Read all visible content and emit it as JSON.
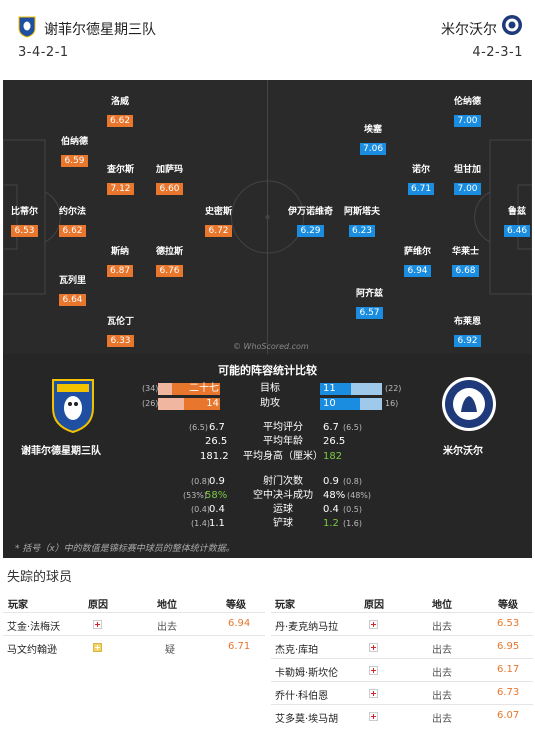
{
  "home": {
    "name": "谢菲尔德星期三队",
    "formation": "3-4-2-1"
  },
  "away": {
    "name": "米尔沃尔",
    "formation": "4-2-3-1"
  },
  "home_players": [
    {
      "name": "洛威",
      "rating": "6.62"
    },
    {
      "name": "伯纳德",
      "rating": "6.59"
    },
    {
      "name": "查尔斯",
      "rating": "7.12"
    },
    {
      "name": "加萨玛",
      "rating": "6.60"
    },
    {
      "name": "比蒂尔",
      "rating": "6.53"
    },
    {
      "name": "约尔法",
      "rating": "6.62"
    },
    {
      "name": "史密斯",
      "rating": "6.72"
    },
    {
      "name": "斯纳",
      "rating": "6.87"
    },
    {
      "name": "德拉斯",
      "rating": "6.76"
    },
    {
      "name": "瓦列里",
      "rating": "6.64"
    },
    {
      "name": "瓦伦丁",
      "rating": "6.33"
    }
  ],
  "away_players": [
    {
      "name": "伦纳德",
      "rating": "7.00"
    },
    {
      "name": "埃塞",
      "rating": "7.06"
    },
    {
      "name": "诺尔",
      "rating": "6.71"
    },
    {
      "name": "坦甘加",
      "rating": "7.00"
    },
    {
      "name": "伊万诺维奇",
      "rating": "6.29"
    },
    {
      "name": "阿斯塔夫",
      "rating": "6.23"
    },
    {
      "name": "鲁兹",
      "rating": "6.46"
    },
    {
      "name": "萨维尔",
      "rating": "6.94"
    },
    {
      "name": "华莱士",
      "rating": "6.68"
    },
    {
      "name": "阿齐兹",
      "rating": "6.57"
    },
    {
      "name": "布莱恩",
      "rating": "6.92"
    }
  ],
  "watermark": "© WhoScored.com",
  "stats": {
    "title": "可能的阵容统计比较",
    "home_label": "谢菲尔德星期三队",
    "away_label": "米尔沃尔",
    "goals": {
      "label": "目标",
      "home_total": "(34)",
      "home": "二十七",
      "away": "11",
      "away_total": "(22)"
    },
    "assists": {
      "label": "助攻",
      "home_total": "(26)",
      "home": "14",
      "away": "10",
      "away_total": "16)"
    },
    "rows1": [
      {
        "label": "平均评分",
        "home_total": "(6.5)",
        "home": "6.7",
        "away": "6.7",
        "away_total": "(6.5)"
      },
      {
        "label": "平均年龄",
        "home_total": "",
        "home": "26.5",
        "away": "26.5",
        "away_total": ""
      },
      {
        "label": "平均身高（厘米）",
        "home_total": "",
        "home": "181.2",
        "away": "182",
        "away_total": ""
      }
    ],
    "rows2": [
      {
        "label": "射门次数",
        "home_total": "(0.8)",
        "home": "0.9",
        "away": "0.9",
        "away_total": "(0.8)"
      },
      {
        "label": "空中决斗成功",
        "home_total": "(53%)",
        "home": "58%",
        "away": "48%",
        "away_total": "(48%)"
      },
      {
        "label": "运球",
        "home_total": "(0.4)",
        "home": "0.4",
        "away": "0.4",
        "away_total": "(0.5)"
      },
      {
        "label": "铲球",
        "home_total": "(1.4)",
        "home": "1.1",
        "away": "1.2",
        "away_total": "(1.6)"
      }
    ],
    "footnote": "* 括号（x）中的数值是锦标赛中球员的整体统计数据。"
  },
  "missing": {
    "title": "失踪的球员",
    "headers": {
      "player": "玩家",
      "reason": "原因",
      "status": "地位",
      "rating": "等级"
    },
    "home": [
      {
        "name": "艾金·法梅沃",
        "type": "injury",
        "status": "出去",
        "rating": "6.94"
      },
      {
        "name": "马文约翰逊",
        "type": "doubt",
        "status": "疑",
        "rating": "6.71"
      }
    ],
    "away": [
      {
        "name": "丹·麦克纳马拉",
        "type": "injury",
        "status": "出去",
        "rating": "6.53"
      },
      {
        "name": "杰克·库珀",
        "type": "injury",
        "status": "出去",
        "rating": "6.95"
      },
      {
        "name": "卡勒姆·斯坎伦",
        "type": "injury",
        "status": "出去",
        "rating": "6.17"
      },
      {
        "name": "乔什·科伯恩",
        "type": "injury",
        "status": "出去",
        "rating": "6.73"
      },
      {
        "name": "艾多莫·埃马胡",
        "type": "injury",
        "status": "出去",
        "rating": "6.07"
      }
    ]
  }
}
